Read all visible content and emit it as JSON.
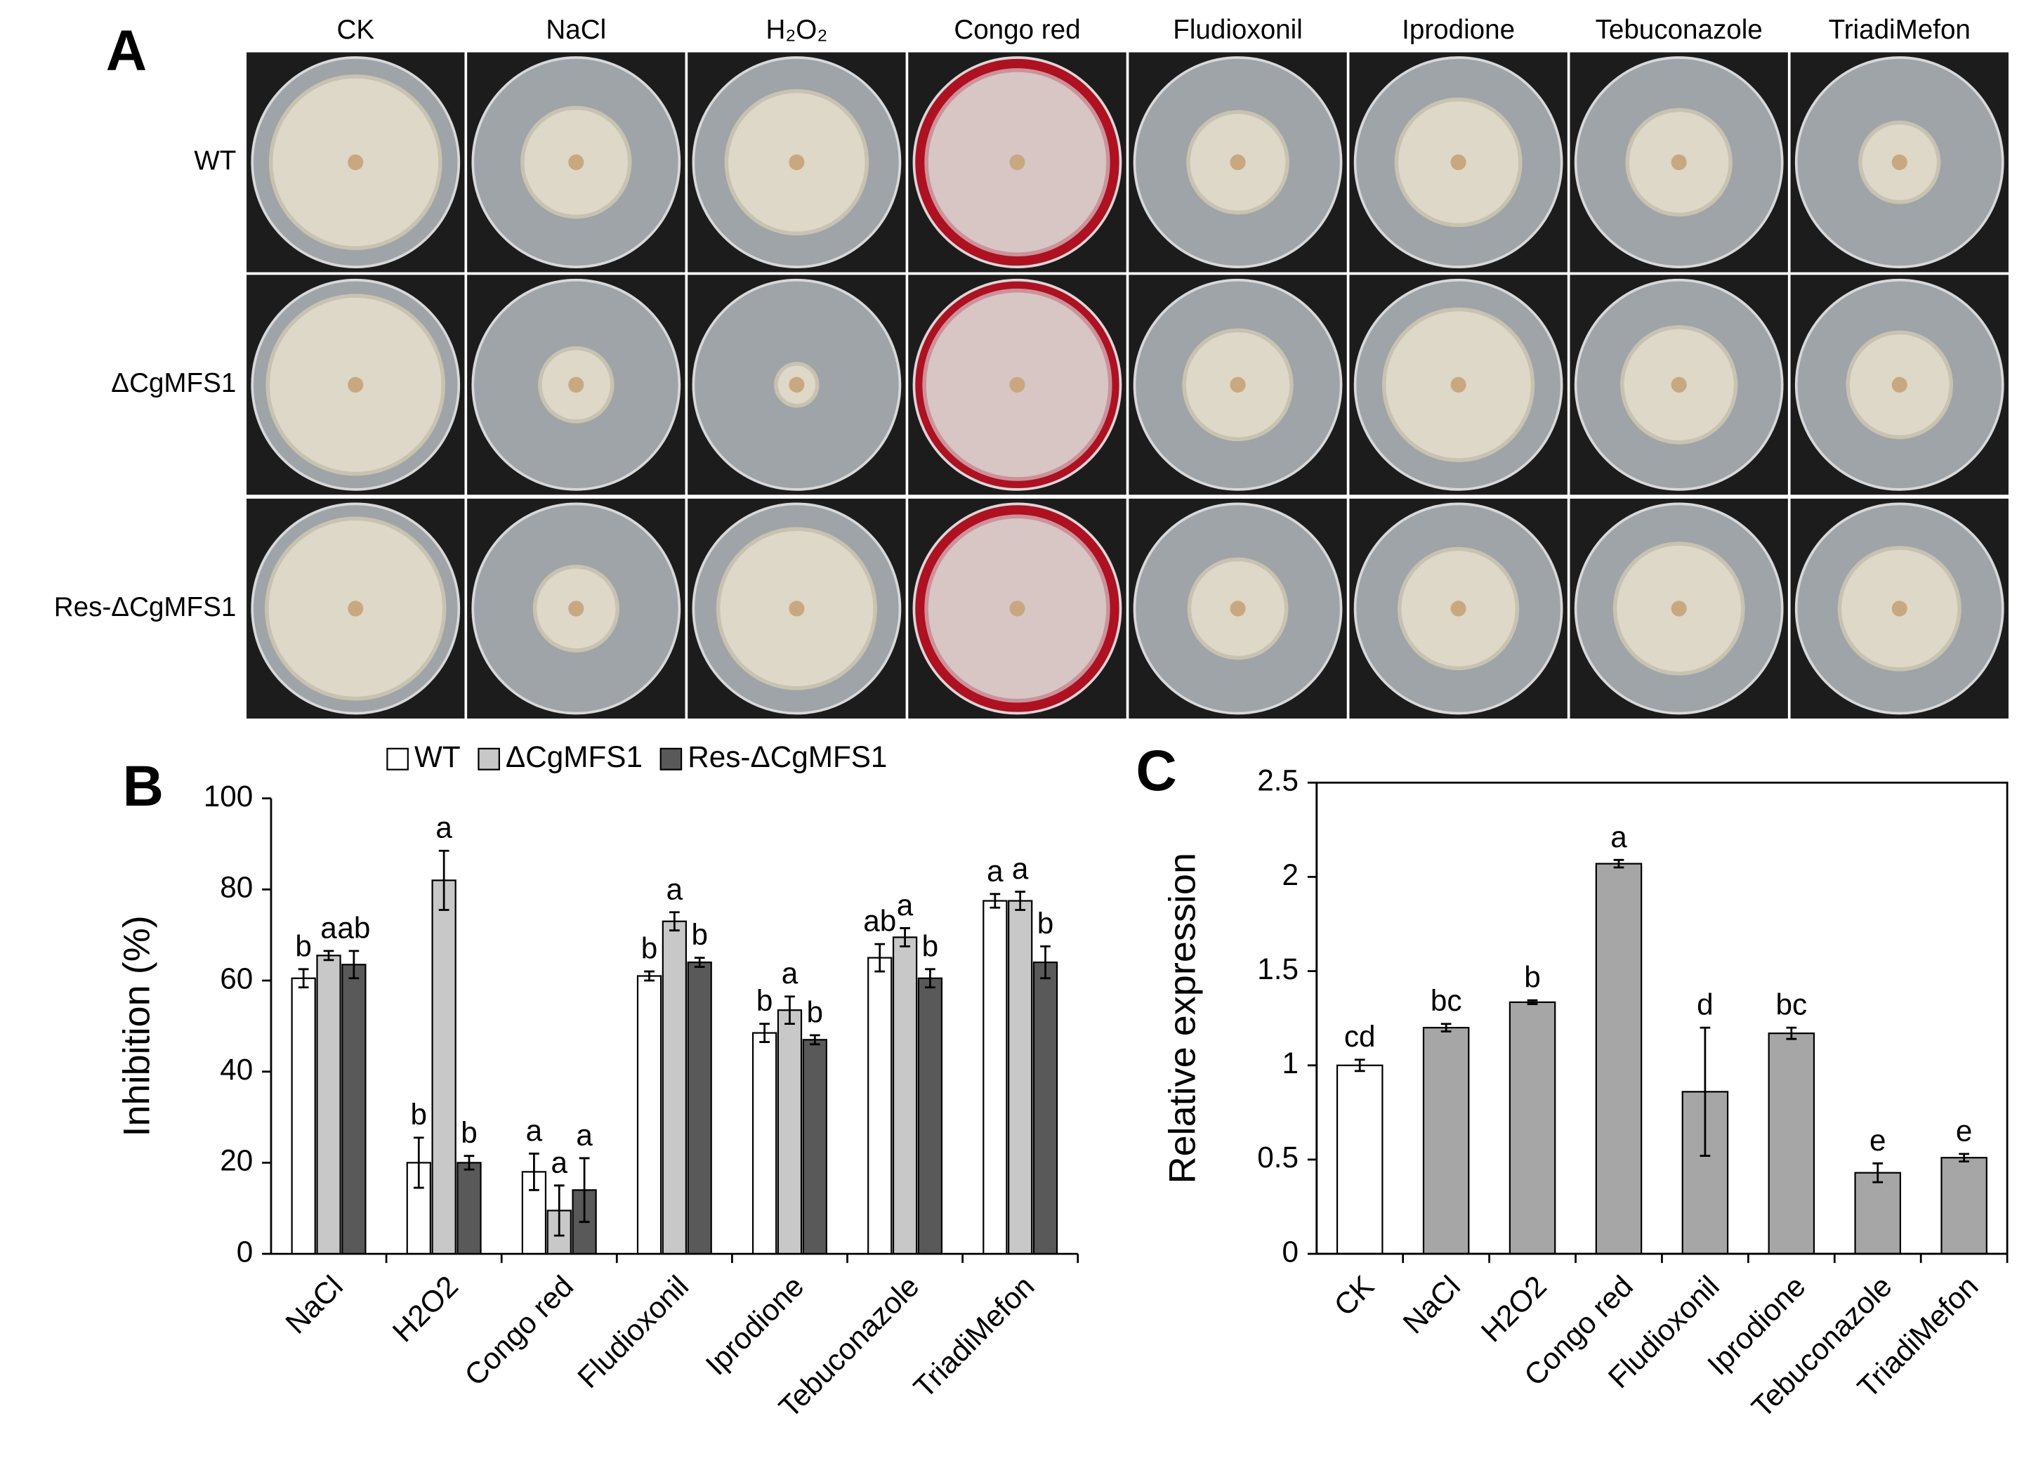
{
  "panel_a": {
    "label": "A",
    "columns": [
      "CK",
      "NaCl",
      "H₂O₂",
      "Congo red",
      "Fludioxonil",
      "Iprodione",
      "Tebuconazole",
      "TriadiMefon"
    ],
    "rows": [
      "WT",
      "ΔCgMFS1",
      "Res-ΔCgMFS1"
    ]
  },
  "chart_data": [
    {
      "type": "bar",
      "panel_label": "B",
      "y_label": "Inhibition (%)",
      "categories": [
        "NaCl",
        "H2O2",
        "Congo red",
        "Fludioxonil",
        "Iprodione",
        "Tebuconazole",
        "TriadiMefon"
      ],
      "series": [
        {
          "name": "WT",
          "color": "#ffffff",
          "values": [
            60.5,
            20,
            18,
            61,
            48.5,
            65,
            77.5
          ],
          "errors": [
            2,
            5.5,
            4,
            1,
            2,
            3,
            1.5
          ],
          "letters": [
            "b",
            "b",
            "a",
            "b",
            "b",
            "ab",
            "a"
          ]
        },
        {
          "name": "ΔCgMFS1",
          "color": "#c8c8c8",
          "values": [
            65.5,
            82,
            9.5,
            73,
            53.5,
            69.5,
            77.5
          ],
          "errors": [
            1,
            6.5,
            5.5,
            2,
            3,
            2,
            2
          ],
          "letters": [
            "a",
            "a",
            "a",
            "a",
            "a",
            "a",
            "a"
          ]
        },
        {
          "name": "Res-ΔCgMFS1",
          "color": "#595959",
          "values": [
            63.5,
            20,
            14,
            64,
            47,
            60.5,
            64
          ],
          "errors": [
            3,
            1.5,
            7,
            1,
            1,
            2,
            3.5
          ],
          "letters": [
            "ab",
            "b",
            "a",
            "b",
            "b",
            "b",
            "b"
          ]
        }
      ],
      "ylim": [
        0,
        100
      ],
      "yticks": [
        0,
        20,
        40,
        60,
        80,
        100
      ],
      "grid": false,
      "legend": "top"
    },
    {
      "type": "bar",
      "panel_label": "C",
      "y_label": "Relative expression",
      "categories": [
        "CK",
        "NaCl",
        "H2O2",
        "Congo red",
        "Fludioxonil",
        "Iprodione",
        "Tebuconazole",
        "TriadiMefon"
      ],
      "values": [
        1.0,
        1.2,
        1.335,
        2.07,
        0.86,
        1.17,
        0.43,
        0.51
      ],
      "errors": [
        0.03,
        0.02,
        0.01,
        0.02,
        0.34,
        0.03,
        0.05,
        0.02
      ],
      "letters": [
        "cd",
        "bc",
        "b",
        "a",
        "d",
        "bc",
        "e",
        "e"
      ],
      "colors": [
        "#ffffff",
        "#a6a6a6",
        "#a6a6a6",
        "#a6a6a6",
        "#a6a6a6",
        "#a6a6a6",
        "#a6a6a6",
        "#a6a6a6"
      ],
      "ylim": [
        0,
        2.5
      ],
      "yticks": [
        0,
        0.5,
        1,
        1.5,
        2,
        2.5
      ],
      "grid": false,
      "frame": true
    }
  ]
}
